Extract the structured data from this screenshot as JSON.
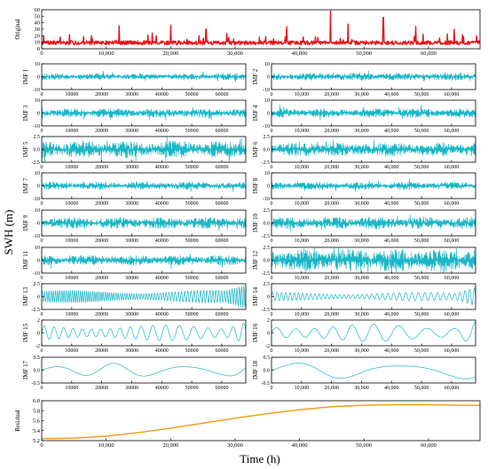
{
  "figure": {
    "ylabel": "SWH (m)",
    "xlabel": "Time (h)"
  },
  "colors": {
    "original": "#e8141b",
    "imf": "#1bb7c7",
    "residual": "#f39a12",
    "axis": "#000000"
  },
  "chart_data": [
    {
      "id": "original",
      "type": "line",
      "label": "Original",
      "xlim": [
        0,
        68000
      ],
      "ylim": [
        0,
        60
      ],
      "xticks": [
        0,
        10000,
        20000,
        30000,
        40000,
        50000,
        60000
      ],
      "xticklabels": [
        "0",
        "10,000",
        "20,000",
        "30,000",
        "40,000",
        "50,000",
        "60,000"
      ],
      "yticks": [
        0,
        10,
        20,
        30,
        40,
        50,
        60
      ],
      "yticklabels": [
        "0",
        "10",
        "20",
        "30",
        "40",
        "50",
        "60"
      ],
      "signal": {
        "kind": "spiky",
        "base": 8,
        "amp": 6,
        "peaks": [
          [
            12000,
            35
          ],
          [
            20000,
            36
          ],
          [
            25500,
            30
          ],
          [
            38000,
            34
          ],
          [
            44800,
            58
          ],
          [
            47500,
            38
          ],
          [
            53000,
            48
          ],
          [
            58000,
            34
          ],
          [
            64000,
            30
          ]
        ]
      }
    },
    {
      "id": "imf1",
      "type": "line",
      "label": "IMF 1",
      "xlim": [
        0,
        68000
      ],
      "ylim": [
        -10,
        10
      ],
      "xticks": [
        0,
        10000,
        20000,
        30000,
        40000,
        50000,
        60000
      ],
      "xticklabels": [
        "0",
        "10000",
        "20000",
        "30000",
        "40000",
        "50000",
        "60000"
      ],
      "yticks": [
        -10,
        0,
        10
      ],
      "yticklabels": [
        "-10",
        "0",
        "10"
      ],
      "signal": {
        "kind": "noise",
        "amp": 2.5
      }
    },
    {
      "id": "imf2",
      "type": "line",
      "label": "IMF 2",
      "xlim": [
        0,
        68000
      ],
      "ylim": [
        -10,
        10
      ],
      "xticks": [
        0,
        10000,
        20000,
        30000,
        40000,
        50000,
        60000
      ],
      "xticklabels": [
        "0",
        "10,000",
        "20,000",
        "30,000",
        "40,000",
        "50,000",
        "60,000"
      ],
      "yticks": [
        -10,
        0,
        10
      ],
      "yticklabels": [
        "-10",
        "0",
        "10"
      ],
      "signal": {
        "kind": "noise",
        "amp": 3
      }
    },
    {
      "id": "imf3",
      "type": "line",
      "label": "IMF 3",
      "xlim": [
        0,
        68000
      ],
      "ylim": [
        -10,
        10
      ],
      "xticks": [
        0,
        10000,
        20000,
        30000,
        40000,
        50000,
        60000
      ],
      "xticklabels": [
        "0",
        "10000",
        "20000",
        "30000",
        "40000",
        "50000",
        "60000"
      ],
      "yticks": [
        -10,
        0,
        10
      ],
      "yticklabels": [
        "-10",
        "0",
        "10"
      ],
      "signal": {
        "kind": "noise",
        "amp": 3.5
      }
    },
    {
      "id": "imf4",
      "type": "line",
      "label": "IMF 4",
      "xlim": [
        0,
        68000
      ],
      "ylim": [
        -10,
        10
      ],
      "xticks": [
        0,
        10000,
        20000,
        30000,
        40000,
        50000,
        60000
      ],
      "xticklabels": [
        "0",
        "10,000",
        "20,000",
        "30,000",
        "40,000",
        "50,000",
        "60,000"
      ],
      "yticks": [
        -10,
        0,
        10
      ],
      "yticklabels": [
        "-10",
        "0",
        "10"
      ],
      "signal": {
        "kind": "noise",
        "amp": 3.5
      }
    },
    {
      "id": "imf5",
      "type": "line",
      "label": "IMF 5",
      "xlim": [
        0,
        68000
      ],
      "ylim": [
        -2.5,
        2.5
      ],
      "xticks": [
        0,
        10000,
        20000,
        30000,
        40000,
        50000,
        60000
      ],
      "xticklabels": [
        "0",
        "10000",
        "20000",
        "30000",
        "40000",
        "50000",
        "60000"
      ],
      "yticks": [
        -2.5,
        0,
        2.5
      ],
      "yticklabels": [
        "-2.5",
        "0.0",
        "2.5"
      ],
      "signal": {
        "kind": "noise",
        "amp": 1.7
      }
    },
    {
      "id": "imf6",
      "type": "line",
      "label": "IMF 6",
      "xlim": [
        0,
        68000
      ],
      "ylim": [
        -2.5,
        2.5
      ],
      "xticks": [
        0,
        10000,
        20000,
        30000,
        40000,
        50000,
        60000
      ],
      "xticklabels": [
        "0",
        "10,000",
        "20,000",
        "30,000",
        "40,000",
        "50,000",
        "60,000"
      ],
      "yticks": [
        -2.5,
        0,
        2.5
      ],
      "yticklabels": [
        "-2.5",
        "0.0",
        "2.5"
      ],
      "signal": {
        "kind": "noise",
        "amp": 1.4
      }
    },
    {
      "id": "imf7",
      "type": "line",
      "label": "IMF 7",
      "xlim": [
        0,
        68000
      ],
      "ylim": [
        -10,
        10
      ],
      "xticks": [
        0,
        10000,
        20000,
        30000,
        40000,
        50000,
        60000
      ],
      "xticklabels": [
        "0",
        "10000",
        "20000",
        "30000",
        "40000",
        "50000",
        "60000"
      ],
      "yticks": [
        -10,
        0,
        10
      ],
      "yticklabels": [
        "-10",
        "0",
        "10"
      ],
      "signal": {
        "kind": "noise",
        "amp": 3
      }
    },
    {
      "id": "imf8",
      "type": "line",
      "label": "IMF 8",
      "xlim": [
        0,
        68000
      ],
      "ylim": [
        -10,
        10
      ],
      "xticks": [
        0,
        10000,
        20000,
        30000,
        40000,
        50000,
        60000
      ],
      "xticklabels": [
        "0",
        "10,000",
        "20,000",
        "30,000",
        "40,000",
        "50,000",
        "60,000"
      ],
      "yticks": [
        -10,
        0,
        10
      ],
      "yticklabels": [
        "-10",
        "0",
        "10"
      ],
      "signal": {
        "kind": "noise",
        "amp": 3
      }
    },
    {
      "id": "imf9",
      "type": "line",
      "label": "IMF 9",
      "xlim": [
        0,
        68000
      ],
      "ylim": [
        -10,
        10
      ],
      "xticks": [
        0,
        10000,
        20000,
        30000,
        40000,
        50000,
        60000
      ],
      "xticklabels": [
        "0",
        "10000",
        "20000",
        "30000",
        "40000",
        "50000",
        "60000"
      ],
      "yticks": [
        -10,
        0,
        10
      ],
      "yticklabels": [
        "-10",
        "0",
        "10"
      ],
      "signal": {
        "kind": "noise",
        "amp": 4.5
      }
    },
    {
      "id": "imf10",
      "type": "line",
      "label": "IMF 10",
      "xlim": [
        0,
        68000
      ],
      "ylim": [
        -2.5,
        2.5
      ],
      "xticks": [
        0,
        10000,
        20000,
        30000,
        40000,
        50000,
        60000
      ],
      "xticklabels": [
        "0",
        "10,000",
        "20,000",
        "30,000",
        "40,000",
        "50,000",
        "60,000"
      ],
      "yticks": [
        -2.5,
        0,
        2.5
      ],
      "yticklabels": [
        "-2.5",
        "0.0",
        "2.5"
      ],
      "signal": {
        "kind": "noise",
        "amp": 1.2
      }
    },
    {
      "id": "imf11",
      "type": "line",
      "label": "IMF 11",
      "xlim": [
        0,
        68000
      ],
      "ylim": [
        -10,
        10
      ],
      "xticks": [
        0,
        10000,
        20000,
        30000,
        40000,
        50000,
        60000
      ],
      "xticklabels": [
        "0",
        "10000",
        "20000",
        "30000",
        "40000",
        "50000",
        "60000"
      ],
      "yticks": [
        -10,
        0,
        10
      ],
      "yticklabels": [
        "-10",
        "0",
        "10"
      ],
      "signal": {
        "kind": "noise",
        "amp": 4
      }
    },
    {
      "id": "imf12",
      "type": "line",
      "label": "IMF 12",
      "xlim": [
        0,
        68000
      ],
      "ylim": [
        -2.5,
        2.5
      ],
      "xticks": [
        0,
        10000,
        20000,
        30000,
        40000,
        50000,
        60000
      ],
      "xticklabels": [
        "0",
        "10,000",
        "20,000",
        "30,000",
        "40,000",
        "50,000",
        "60,000"
      ],
      "yticks": [
        -2.5,
        0,
        2.5
      ],
      "yticklabels": [
        "-2.5",
        "0.0",
        "2.5"
      ],
      "signal": {
        "kind": "noise",
        "amp": 2.3
      }
    },
    {
      "id": "imf13",
      "type": "line",
      "label": "IMF 13",
      "xlim": [
        0,
        68000
      ],
      "ylim": [
        -2.5,
        2.5
      ],
      "xticks": [
        0,
        10000,
        20000,
        30000,
        40000,
        50000,
        60000
      ],
      "xticklabels": [
        "0",
        "10000",
        "20000",
        "30000",
        "40000",
        "50000",
        "60000"
      ],
      "yticks": [
        -2.5,
        0,
        2.5
      ],
      "yticklabels": [
        "-2.5",
        "0",
        "2.5"
      ],
      "signal": {
        "kind": "osc",
        "amp": 0.9,
        "cycles": 90,
        "end_amp": 2.2
      }
    },
    {
      "id": "imf14",
      "type": "line",
      "label": "IMF 14",
      "xlim": [
        0,
        68000
      ],
      "ylim": [
        -2.5,
        2.5
      ],
      "xticks": [
        0,
        10000,
        20000,
        30000,
        40000,
        50000,
        60000
      ],
      "xticklabels": [
        "0",
        "10,000",
        "20,000",
        "30,000",
        "40,000",
        "50,000",
        "60,000"
      ],
      "yticks": [
        -2.5,
        0,
        2.5
      ],
      "yticklabels": [
        "-2.5",
        "0",
        "2.5"
      ],
      "signal": {
        "kind": "osc",
        "amp": 0.6,
        "cycles": 45,
        "end_amp": 2.0
      }
    },
    {
      "id": "imf15",
      "type": "line",
      "label": "IMF 15",
      "xlim": [
        0,
        68000
      ],
      "ylim": [
        -2,
        2
      ],
      "xticks": [
        0,
        10000,
        20000,
        30000,
        40000,
        50000,
        60000
      ],
      "xticklabels": [
        "0",
        "10000",
        "20000",
        "30000",
        "40000",
        "50000",
        "60000"
      ],
      "yticks": [
        -2,
        0,
        2
      ],
      "yticklabels": [
        "-2",
        "0",
        "2"
      ],
      "signal": {
        "kind": "osc",
        "amp": 0.9,
        "cycles": 20,
        "end_amp": 1.9
      }
    },
    {
      "id": "imf16",
      "type": "line",
      "label": "IMF 16",
      "xlim": [
        0,
        68000
      ],
      "ylim": [
        -2,
        2
      ],
      "xticks": [
        0,
        10000,
        20000,
        30000,
        40000,
        50000,
        60000
      ],
      "xticklabels": [
        "0",
        "10,000",
        "20,000",
        "30,000",
        "40,000",
        "50,000",
        "60,000"
      ],
      "yticks": [
        -2,
        0,
        2
      ],
      "yticklabels": [
        "-2",
        "0",
        "2"
      ],
      "signal": {
        "kind": "osc",
        "amp": 1.0,
        "cycles": 10,
        "end_amp": 1.8
      }
    },
    {
      "id": "imf17",
      "type": "line",
      "label": "IMF 17",
      "xlim": [
        0,
        68000
      ],
      "ylim": [
        -0.5,
        0.5
      ],
      "xticks": [
        0,
        10000,
        20000,
        30000,
        40000,
        50000,
        60000
      ],
      "xticklabels": [
        "0",
        "10000",
        "20000",
        "30000",
        "40000",
        "50000",
        "60000"
      ],
      "yticks": [
        -0.5,
        0,
        0.5
      ],
      "yticklabels": [
        "-0.5",
        "0.0",
        "0.5"
      ],
      "signal": {
        "kind": "osc",
        "amp": 0.2,
        "cycles": 3.3,
        "end_amp": 0.3
      }
    },
    {
      "id": "imf18",
      "type": "line",
      "label": "IMF 18",
      "xlim": [
        0,
        68000
      ],
      "ylim": [
        -0.5,
        0.5
      ],
      "xticks": [
        0,
        10000,
        20000,
        30000,
        40000,
        50000,
        60000
      ],
      "xticklabels": [
        "0",
        "10,000",
        "20,000",
        "30,000",
        "40,000",
        "50,000",
        "60,000"
      ],
      "yticks": [
        -0.5,
        0,
        0.5
      ],
      "yticklabels": [
        "-0.5",
        "0.0",
        "0.5"
      ],
      "signal": {
        "kind": "osc",
        "amp": 0.25,
        "cycles": 2,
        "end_amp": 0.25
      }
    },
    {
      "id": "residual",
      "type": "line",
      "label": "Residual",
      "xlim": [
        0,
        68000
      ],
      "ylim": [
        5.2,
        6.0
      ],
      "xticks": [
        0,
        10000,
        20000,
        30000,
        40000,
        50000,
        60000
      ],
      "xticklabels": [
        "0",
        "10,000",
        "20,000",
        "30,000",
        "40,000",
        "50,000",
        "60,000"
      ],
      "yticks": [
        5.2,
        5.4,
        5.6,
        5.8,
        6.0
      ],
      "yticklabels": [
        "5.2",
        "5.4",
        "5.6",
        "5.8",
        "6.0"
      ],
      "x": [
        0,
        5000,
        10000,
        15000,
        20000,
        25000,
        30000,
        35000,
        40000,
        45000,
        50000,
        55000,
        60000,
        65000,
        68000
      ],
      "y": [
        5.24,
        5.25,
        5.29,
        5.36,
        5.45,
        5.55,
        5.65,
        5.74,
        5.82,
        5.88,
        5.91,
        5.92,
        5.92,
        5.91,
        5.91
      ]
    }
  ]
}
